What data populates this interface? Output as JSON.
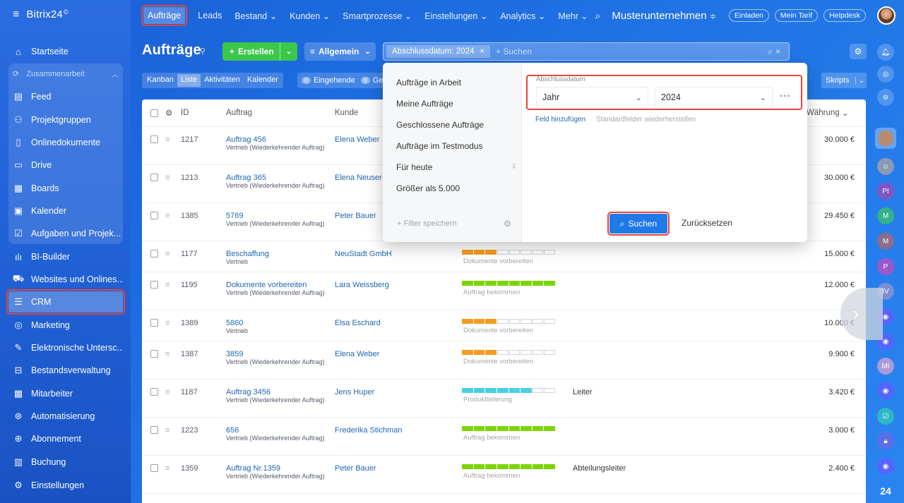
{
  "brand": {
    "name": "Bitrix24",
    "mark": "©"
  },
  "sidebar": {
    "items": [
      {
        "label": "Startseite",
        "icon": "home-icon"
      },
      {
        "label": "Feed",
        "icon": "feed-icon"
      },
      {
        "label": "Projektgruppen",
        "icon": "groups-icon"
      },
      {
        "label": "Onlinedokumente",
        "icon": "document-icon"
      },
      {
        "label": "Drive",
        "icon": "drive-icon"
      },
      {
        "label": "Boards",
        "icon": "board-icon"
      },
      {
        "label": "Kalender",
        "icon": "calendar-icon"
      },
      {
        "label": "Aufgaben und Projek...",
        "icon": "task-icon"
      },
      {
        "label": "BI-Builder",
        "icon": "chart-icon"
      },
      {
        "label": "Websites und Onlines...",
        "icon": "cart-icon"
      },
      {
        "label": "CRM",
        "icon": "funnel-icon"
      },
      {
        "label": "Marketing",
        "icon": "marketing-icon"
      },
      {
        "label": "Elektronische Untersc...",
        "icon": "signature-icon"
      },
      {
        "label": "Bestandsverwaltung",
        "icon": "inventory-icon"
      },
      {
        "label": "Mitarbeiter",
        "icon": "employees-icon"
      },
      {
        "label": "Automatisierung",
        "icon": "automation-icon"
      },
      {
        "label": "Abonnement",
        "icon": "subscription-icon"
      },
      {
        "label": "Buchung",
        "icon": "booking-icon"
      },
      {
        "label": "Einstellungen",
        "icon": "settings-icon"
      }
    ],
    "group_label": "Zusammenarbeit"
  },
  "topnav": {
    "items": [
      "Aufträge",
      "Leads",
      "Bestand",
      "Kunden",
      "Smartprozesse",
      "Einstellungen",
      "Analytics",
      "Mehr"
    ],
    "org": "Musterunternehmen",
    "pills": [
      "Einladen",
      "Mein Tarif",
      "Helpdesk"
    ]
  },
  "page": {
    "title": "Aufträge",
    "create": "Erstellen",
    "general": "Allgemein",
    "search_tag": "Abschlussdatum: 2024",
    "search_placeholder": "+ Suchen"
  },
  "views": {
    "tabs": [
      "Kanban",
      "Liste",
      "Aktivitäten",
      "Kalender"
    ],
    "counter_1": {
      "count": "0",
      "label": "Eingehende"
    },
    "counter_2": {
      "count": "0",
      "label": "Ge"
    },
    "skripts": "Skripts"
  },
  "table": {
    "headers": {
      "id": "ID",
      "deal": "Auftrag",
      "client": "Kunde",
      "currency": "Währung"
    },
    "rows": [
      {
        "id": "1217",
        "title": "Auftrag 456",
        "type": "Vertrieb (Wiederkehrender Auftrag)",
        "client": "Elena Weber",
        "stage": "",
        "resp": "",
        "amount": "30.000 €"
      },
      {
        "id": "1213",
        "title": "Auftrag 365",
        "type": "Vertrieb (Wiederkehrender Auftrag)",
        "client": "Elena Neuser",
        "stage": "",
        "resp": "",
        "amount": "30.000 €"
      },
      {
        "id": "1385",
        "title": "5769",
        "type": "Vertrieb (Wiederkehrender Auftrag)",
        "client": "Peter Bauer",
        "stage": "",
        "resp": "",
        "amount": "29.450 €"
      },
      {
        "id": "1177",
        "title": "Beschaffung",
        "type": "Vertrieb",
        "client": "NeuStadt GmbH",
        "stage": "Dokumente vorbereiten",
        "resp": "",
        "amount": "15.000 €"
      },
      {
        "id": "1195",
        "title": "Dokumente vorbereiten",
        "type": "Vertrieb (Wiederkehrender Auftrag)",
        "client": "Lara Weissberg",
        "stage": "Auftrag bekommen",
        "resp": "",
        "amount": "12.000 €"
      },
      {
        "id": "1389",
        "title": "5860",
        "type": "Vertrieb",
        "client": "Elsa Eschard",
        "stage": "Dokumente vorbereiten",
        "resp": "",
        "amount": "10.000 €"
      },
      {
        "id": "1387",
        "title": "3859",
        "type": "Vertrieb (Wiederkehrender Auftrag)",
        "client": "Elena Weber",
        "stage": "Dokumente vorbereiten",
        "resp": "",
        "amount": "9.900 €"
      },
      {
        "id": "1187",
        "title": "Auftrag 3456",
        "type": "Vertrieb (Wiederkehrender Auftrag)",
        "client": "Jens Huper",
        "stage": "Produktlieferung",
        "resp": "Leiter",
        "amount": "3.420 €"
      },
      {
        "id": "1223",
        "title": "656",
        "type": "Vertrieb (Wiederkehrender Auftrag)",
        "client": "Frederika Stichman",
        "stage": "Auftrag bekommen",
        "resp": "",
        "amount": "3.000 €"
      },
      {
        "id": "1359",
        "title": "Auftrag Nr.1359",
        "type": "Vertrieb (Wiederkehrender Auftrag)",
        "client": "Peter Bauer",
        "stage": "Auftrag bekommen",
        "resp": "Abteilungsleiter",
        "amount": "2.400 €"
      }
    ]
  },
  "filter": {
    "presets": [
      "Aufträge in Arbeit",
      "Meine Aufträge",
      "Geschlossene Aufträge",
      "Aufträge im Testmodus",
      "Für heute",
      "Größer als 5.000"
    ],
    "save_filter": "+ Filter speichern",
    "field_label": "Abschlussdatum",
    "period": "Jahr",
    "year": "2024",
    "add_field": "Feld hinzufügen",
    "restore": "Standardfelder wiederherstellen",
    "search": "Suchen",
    "reset": "Zurücksetzen"
  },
  "rail": {
    "avatars": [
      "PI",
      "M",
      "M",
      "P",
      "IV",
      "MI"
    ],
    "badge": "24"
  },
  "colors": {
    "accent": "#1f7ae8",
    "highlight": "#e2453a",
    "create": "#3bc84a",
    "stage_orange": "#f39c21",
    "stage_green": "#7bd500",
    "stage_cyan": "#47d1e2"
  }
}
